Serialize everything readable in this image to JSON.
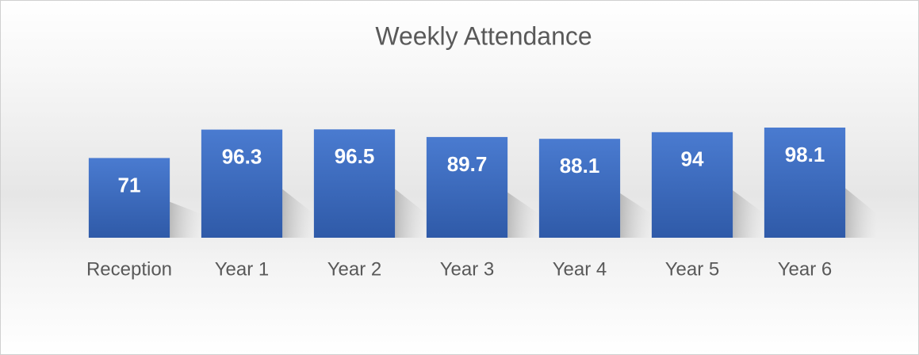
{
  "chart_data": {
    "type": "bar",
    "title": "Weekly Attendance",
    "categories": [
      "Reception",
      "Year 1",
      "Year 2",
      "Year 3",
      "Year 4",
      "Year 5",
      "Year 6"
    ],
    "values": [
      71,
      96.3,
      96.5,
      89.7,
      88.1,
      94,
      98.1
    ],
    "color": "#4472c4"
  }
}
